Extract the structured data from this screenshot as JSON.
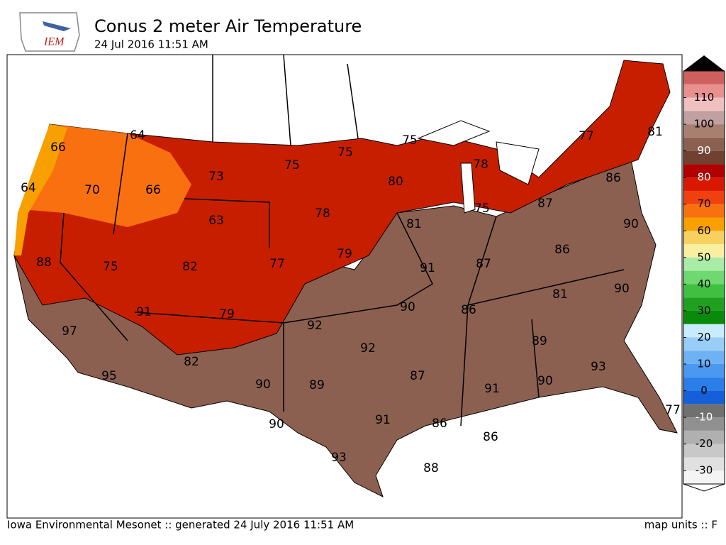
{
  "header": {
    "logo": "IEM",
    "title": "Conus 2 meter Air Temperature",
    "subtitle": "24 Jul 2016 11:51 AM"
  },
  "stations": [
    66,
    64,
    73,
    75,
    75,
    75,
    77,
    81,
    64,
    70,
    66,
    63,
    78,
    80,
    78,
    86,
    75,
    87,
    81,
    90,
    79,
    77,
    82,
    75,
    88,
    91,
    87,
    86,
    90,
    81,
    91,
    79,
    90,
    86,
    92,
    97,
    92,
    89,
    82,
    93,
    95,
    87,
    90,
    89,
    90,
    91,
    77,
    90,
    91,
    86,
    86,
    93,
    88
  ],
  "colorbar": {
    "lim": [
      -35,
      120
    ],
    "ticks": [
      110,
      100,
      90,
      80,
      70,
      60,
      50,
      40,
      30,
      20,
      10,
      0,
      -10,
      -20,
      -30
    ],
    "band_width": 5,
    "colors": [
      "#f4f4f4",
      "#e0e0e0",
      "#c8c8c8",
      "#b0b0b0",
      "#909090",
      "#707070",
      "#1560d8",
      "#2b7de8",
      "#4a98f0",
      "#6eb2f4",
      "#98cdf8",
      "#c8ecfc",
      "#0a8a0a",
      "#20a020",
      "#40c040",
      "#70d870",
      "#a8eca8",
      "#f8f0a0",
      "#f8d060",
      "#f8a000",
      "#f87010",
      "#f04010",
      "#d81800",
      "#b00000",
      "#704030",
      "#8a6050",
      "#a88070",
      "#c0a0a0",
      "#f0c0c0",
      "#e89090",
      "#d06060"
    ]
  },
  "footer": {
    "left": "Iowa Environmental Mesonet :: generated 24 July 2016 11:51 AM",
    "right": "map units :: F"
  }
}
